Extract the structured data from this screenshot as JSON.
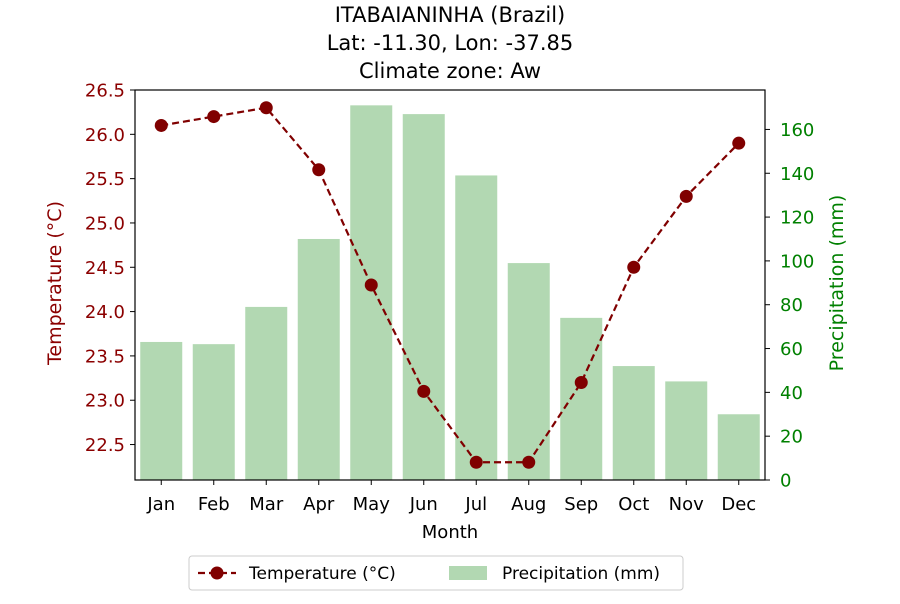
{
  "chart_data": {
    "type": "bar+line",
    "title_lines": [
      "ITABAIANINHA (Brazil)",
      "Lat: -11.30, Lon: -37.85",
      "Climate zone: Aw"
    ],
    "xlabel": "Month",
    "categories": [
      "Jan",
      "Feb",
      "Mar",
      "Apr",
      "May",
      "Jun",
      "Jul",
      "Aug",
      "Sep",
      "Oct",
      "Nov",
      "Dec"
    ],
    "left_axis": {
      "label": "Temperature (°C)",
      "ylim": [
        22.1,
        26.5
      ],
      "ticks": [
        22.5,
        23.0,
        23.5,
        24.0,
        24.5,
        25.0,
        25.5,
        26.0,
        26.5
      ],
      "color": "#8b0000"
    },
    "right_axis": {
      "label": "Precipitation (mm)",
      "ylim": [
        0,
        178
      ],
      "ticks": [
        0,
        20,
        40,
        60,
        80,
        100,
        120,
        140,
        160
      ],
      "color": "#008000"
    },
    "series": [
      {
        "name": "Temperature (°C)",
        "kind": "line",
        "axis": "left",
        "color": "#800000",
        "style": "dashed",
        "marker": "circle",
        "values": [
          26.1,
          26.2,
          26.3,
          25.6,
          24.3,
          23.1,
          22.3,
          22.3,
          23.2,
          24.5,
          25.3,
          25.9
        ]
      },
      {
        "name": "Precipitation (mm)",
        "kind": "bar",
        "axis": "right",
        "color": "#b2d8b2",
        "values": [
          63,
          62,
          79,
          110,
          171,
          167,
          139,
          99,
          74,
          52,
          45,
          30
        ]
      }
    ],
    "legend": {
      "position": "bottom-center",
      "entries": [
        "Temperature (°C)",
        "Precipitation (mm)"
      ]
    },
    "grid": false
  }
}
